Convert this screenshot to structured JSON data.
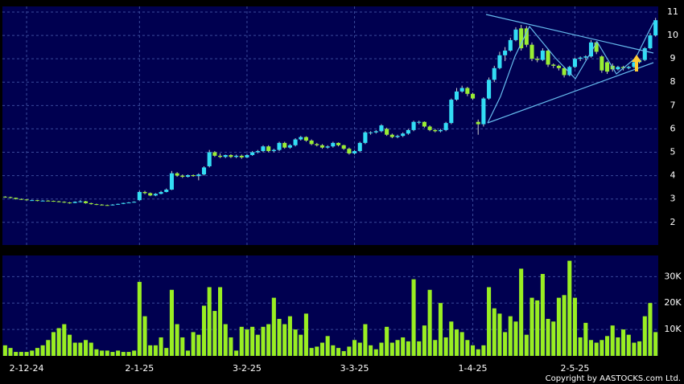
{
  "chart_data": [
    {
      "type": "candlestick",
      "up_color": "#33ddf5",
      "down_color": "#99ee33",
      "wick_color": "#cccccc",
      "ylim": [
        1.03,
        11.24
      ],
      "yticks": [
        2,
        3,
        4,
        5,
        6,
        7,
        8,
        9,
        10,
        11
      ],
      "grid": true,
      "open": [
        3.1,
        3.08,
        3.05,
        3.0,
        2.98,
        2.95,
        2.95,
        2.93,
        2.93,
        2.92,
        2.9,
        2.88,
        2.85,
        2.83,
        2.88,
        2.9,
        2.82,
        2.78,
        2.76,
        2.74,
        2.73,
        2.76,
        2.79,
        2.83,
        2.85,
        2.95,
        3.3,
        3.25,
        3.15,
        3.22,
        3.3,
        3.4,
        4.1,
        4.0,
        3.95,
        4.02,
        3.98,
        4.05,
        4.4,
        5.0,
        4.85,
        4.8,
        4.88,
        4.8,
        4.85,
        4.78,
        4.88,
        5.0,
        5.05,
        5.25,
        5.05,
        5.1,
        5.4,
        5.2,
        5.3,
        5.55,
        5.65,
        5.5,
        5.35,
        5.3,
        5.2,
        5.25,
        5.4,
        5.3,
        5.15,
        4.95,
        5.05,
        5.4,
        5.85,
        5.85,
        5.9,
        6.0,
        5.75,
        5.65,
        5.7,
        5.8,
        5.95,
        6.3,
        6.3,
        6.1,
        5.95,
        5.9,
        5.95,
        6.25,
        7.25,
        7.6,
        7.75,
        7.5,
        6.3,
        6.2,
        7.3,
        8.1,
        8.6,
        9.15,
        9.35,
        9.8,
        10.3,
        10.3,
        9.6,
        9.0,
        8.95,
        9.35,
        8.75,
        8.7,
        8.6,
        8.3,
        8.65,
        9.0,
        9.05,
        9.1,
        9.7,
        9.1,
        8.85,
        8.7,
        8.55,
        8.65,
        8.6,
        8.65,
        8.85,
        8.95,
        9.45,
        10.0
      ],
      "high": [
        3.12,
        3.1,
        3.06,
        3.02,
        3.0,
        2.97,
        2.96,
        2.95,
        2.95,
        2.93,
        2.92,
        2.9,
        2.87,
        2.9,
        2.95,
        2.92,
        2.84,
        2.8,
        2.78,
        2.76,
        2.78,
        2.8,
        2.84,
        2.87,
        2.9,
        3.35,
        3.35,
        3.28,
        3.25,
        3.35,
        3.45,
        4.2,
        4.15,
        4.05,
        4.05,
        4.05,
        4.1,
        4.4,
        5.1,
        5.05,
        4.95,
        4.9,
        4.92,
        4.9,
        4.9,
        4.92,
        5.05,
        5.1,
        5.3,
        5.3,
        5.15,
        5.45,
        5.45,
        5.35,
        5.6,
        5.7,
        5.68,
        5.55,
        5.4,
        5.35,
        5.3,
        5.45,
        5.42,
        5.32,
        5.2,
        5.1,
        5.45,
        5.9,
        5.9,
        5.95,
        6.2,
        6.05,
        5.8,
        5.75,
        5.85,
        6.0,
        6.35,
        6.35,
        6.32,
        6.15,
        6.0,
        6.0,
        6.3,
        7.3,
        7.75,
        7.85,
        7.8,
        7.55,
        6.4,
        7.35,
        8.2,
        8.7,
        9.3,
        9.5,
        9.9,
        10.35,
        10.45,
        10.4,
        9.7,
        9.1,
        9.45,
        9.4,
        8.8,
        8.75,
        8.65,
        8.7,
        9.05,
        9.1,
        9.15,
        9.8,
        9.75,
        9.15,
        8.9,
        8.8,
        8.7,
        8.7,
        8.7,
        8.9,
        9.0,
        9.5,
        10.1,
        10.75
      ],
      "low": [
        3.05,
        3.02,
        2.98,
        2.96,
        2.93,
        2.92,
        2.9,
        2.9,
        2.9,
        2.88,
        2.86,
        2.83,
        2.8,
        2.82,
        2.85,
        2.8,
        2.76,
        2.74,
        2.72,
        2.71,
        2.72,
        2.75,
        2.78,
        2.82,
        2.84,
        2.93,
        3.2,
        3.12,
        3.12,
        3.2,
        3.28,
        3.38,
        3.95,
        3.9,
        3.92,
        3.95,
        3.8,
        4.0,
        4.35,
        4.8,
        4.75,
        4.75,
        4.75,
        4.75,
        4.72,
        4.75,
        4.85,
        4.95,
        5.0,
        5.0,
        5.0,
        5.05,
        5.15,
        5.15,
        5.25,
        5.5,
        5.45,
        5.3,
        5.25,
        5.15,
        5.15,
        5.2,
        5.25,
        5.1,
        4.9,
        4.9,
        5.0,
        5.35,
        5.75,
        5.8,
        5.85,
        5.7,
        5.6,
        5.6,
        5.65,
        5.75,
        5.9,
        6.2,
        6.05,
        5.9,
        5.85,
        5.85,
        5.9,
        6.2,
        7.2,
        7.55,
        7.4,
        7.25,
        5.75,
        6.1,
        7.25,
        8.0,
        8.55,
        8.9,
        9.3,
        9.75,
        9.35,
        9.5,
        8.9,
        8.85,
        8.9,
        8.65,
        8.6,
        8.5,
        8.2,
        8.25,
        8.6,
        8.9,
        8.95,
        9.05,
        9.2,
        8.4,
        8.35,
        8.45,
        8.5,
        8.5,
        8.55,
        8.6,
        8.8,
        8.9,
        9.4,
        9.95
      ],
      "close": [
        3.08,
        3.05,
        3.0,
        2.98,
        2.95,
        2.95,
        2.93,
        2.93,
        2.92,
        2.9,
        2.88,
        2.85,
        2.83,
        2.88,
        2.9,
        2.82,
        2.78,
        2.76,
        2.74,
        2.73,
        2.76,
        2.79,
        2.83,
        2.85,
        2.88,
        3.3,
        3.25,
        3.15,
        3.22,
        3.3,
        3.4,
        4.1,
        4.0,
        3.95,
        4.02,
        3.98,
        4.05,
        4.35,
        5.0,
        4.85,
        4.8,
        4.88,
        4.8,
        4.85,
        4.78,
        4.88,
        5.0,
        5.05,
        5.25,
        5.05,
        5.1,
        5.4,
        5.2,
        5.3,
        5.55,
        5.65,
        5.5,
        5.35,
        5.3,
        5.2,
        5.25,
        5.4,
        5.3,
        5.15,
        4.95,
        5.05,
        5.4,
        5.85,
        5.85,
        5.9,
        6.15,
        5.75,
        5.65,
        5.7,
        5.8,
        5.95,
        6.3,
        6.3,
        6.1,
        5.95,
        5.9,
        5.95,
        6.25,
        7.25,
        7.6,
        7.75,
        7.5,
        7.3,
        6.2,
        7.3,
        8.1,
        8.6,
        9.15,
        9.35,
        9.8,
        10.25,
        9.45,
        9.6,
        9.0,
        8.95,
        9.35,
        8.75,
        8.7,
        8.6,
        8.3,
        8.65,
        9.0,
        9.05,
        9.1,
        9.7,
        9.3,
        8.5,
        8.45,
        8.55,
        8.65,
        8.6,
        8.65,
        8.85,
        8.95,
        9.45,
        10.0,
        10.65
      ]
    },
    {
      "type": "bar",
      "color": "#99ee22",
      "ylim": [
        0,
        38000
      ],
      "yticks": [
        {
          "value": 10000,
          "label": "10K"
        },
        {
          "value": 20000,
          "label": "20K"
        },
        {
          "value": 30000,
          "label": "30K"
        }
      ],
      "grid": true,
      "categories": [
        null,
        null,
        null,
        null,
        "2-12-24",
        null,
        null,
        null,
        null,
        null,
        null,
        null,
        null,
        null,
        null,
        null,
        null,
        null,
        null,
        null,
        null,
        null,
        null,
        null,
        null,
        "2-1-25",
        null,
        null,
        null,
        null,
        null,
        null,
        null,
        null,
        null,
        null,
        null,
        null,
        null,
        null,
        null,
        null,
        null,
        null,
        null,
        "3-2-25",
        null,
        null,
        null,
        null,
        null,
        null,
        null,
        null,
        null,
        null,
        null,
        null,
        null,
        null,
        null,
        null,
        null,
        null,
        null,
        "3-3-25",
        null,
        null,
        null,
        null,
        null,
        null,
        null,
        null,
        null,
        null,
        null,
        null,
        null,
        null,
        null,
        null,
        null,
        null,
        null,
        null,
        null,
        "1-4-25",
        null,
        null,
        null,
        null,
        null,
        null,
        null,
        null,
        null,
        null,
        null,
        null,
        null,
        null,
        null,
        null,
        null,
        null,
        "2-5-25",
        null,
        null,
        null,
        null,
        null,
        null,
        null,
        null,
        null,
        null,
        null,
        null,
        null,
        null,
        null
      ],
      "values": [
        4000,
        3000,
        1500,
        1500,
        1500,
        2000,
        3000,
        4000,
        6000,
        9000,
        10500,
        12000,
        8000,
        5000,
        5000,
        6000,
        5000,
        2500,
        2000,
        2000,
        1500,
        2000,
        1500,
        1500,
        2000,
        28000,
        15000,
        4000,
        4000,
        7000,
        3000,
        25000,
        12000,
        7000,
        2000,
        9000,
        8000,
        19000,
        26000,
        17000,
        26000,
        12000,
        7000,
        2000,
        11000,
        10000,
        11000,
        8000,
        11000,
        12000,
        22000,
        14000,
        12000,
        15000,
        10000,
        8000,
        16000,
        3000,
        3500,
        5000,
        7500,
        4000,
        3000,
        1800,
        3500,
        6000,
        5000,
        12000,
        4000,
        2500,
        5000,
        11000,
        5000,
        6000,
        7000,
        5500,
        29000,
        5500,
        11500,
        25000,
        6000,
        20000,
        7000,
        13000,
        10000,
        9000,
        6000,
        4000,
        2500,
        4000,
        26000,
        18000,
        16000,
        9000,
        15000,
        13000,
        33000,
        8000,
        22000,
        21000,
        31000,
        14000,
        13000,
        22000,
        23000,
        36000,
        22000,
        7000,
        12500,
        6000,
        5000,
        6000,
        7500,
        11500,
        7000,
        10000,
        8000,
        5000,
        5500,
        15000,
        20000,
        9000
      ]
    }
  ],
  "copyright": "Copyright by AASTOCKS.com Ltd."
}
